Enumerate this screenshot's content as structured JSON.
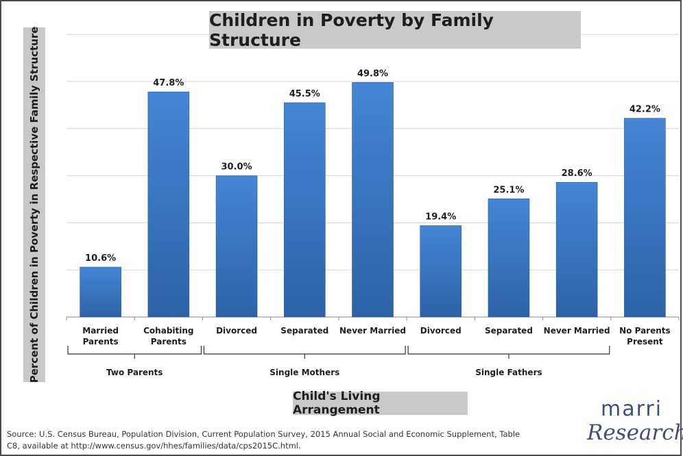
{
  "chart_data": {
    "type": "bar",
    "title": "Children in Poverty by Family Structure",
    "ylabel": "Percent of Children in Poverty in Respective Family Structure",
    "xlabel": "Child's Living Arrangement",
    "ylim": [
      0,
      60
    ],
    "grid": true,
    "categories": [
      [
        "Married",
        "Parents"
      ],
      [
        "Cohabiting",
        "Parents"
      ],
      [
        "Divorced"
      ],
      [
        "Separated"
      ],
      [
        "Never Married"
      ],
      [
        "Divorced"
      ],
      [
        "Separated"
      ],
      [
        "Never Married"
      ],
      [
        "No Parents",
        "Present"
      ]
    ],
    "values": [
      10.6,
      47.8,
      30.0,
      45.5,
      49.8,
      19.4,
      25.1,
      28.6,
      42.2
    ],
    "data_labels": [
      "10.6%",
      "47.8%",
      "30.0%",
      "45.5%",
      "49.8%",
      "19.4%",
      "25.1%",
      "28.6%",
      "42.2%"
    ],
    "groups": [
      {
        "label": "Two Parents",
        "start": 0,
        "end": 1
      },
      {
        "label": "Single Mothers",
        "start": 2,
        "end": 4
      },
      {
        "label": "Single Fathers",
        "start": 5,
        "end": 7
      }
    ],
    "bar_color": "#3a78c4"
  },
  "source_line1": "Source: U.S. Census Bureau, Population Division, Current Population Survey, 2015 Annual Social and Economic Supplement, Table",
  "source_line2": "C8, available at http://www.census.gov/hhes/families/data/cps2015C.html.",
  "logo": {
    "top": "marri",
    "bottom": "Research"
  }
}
